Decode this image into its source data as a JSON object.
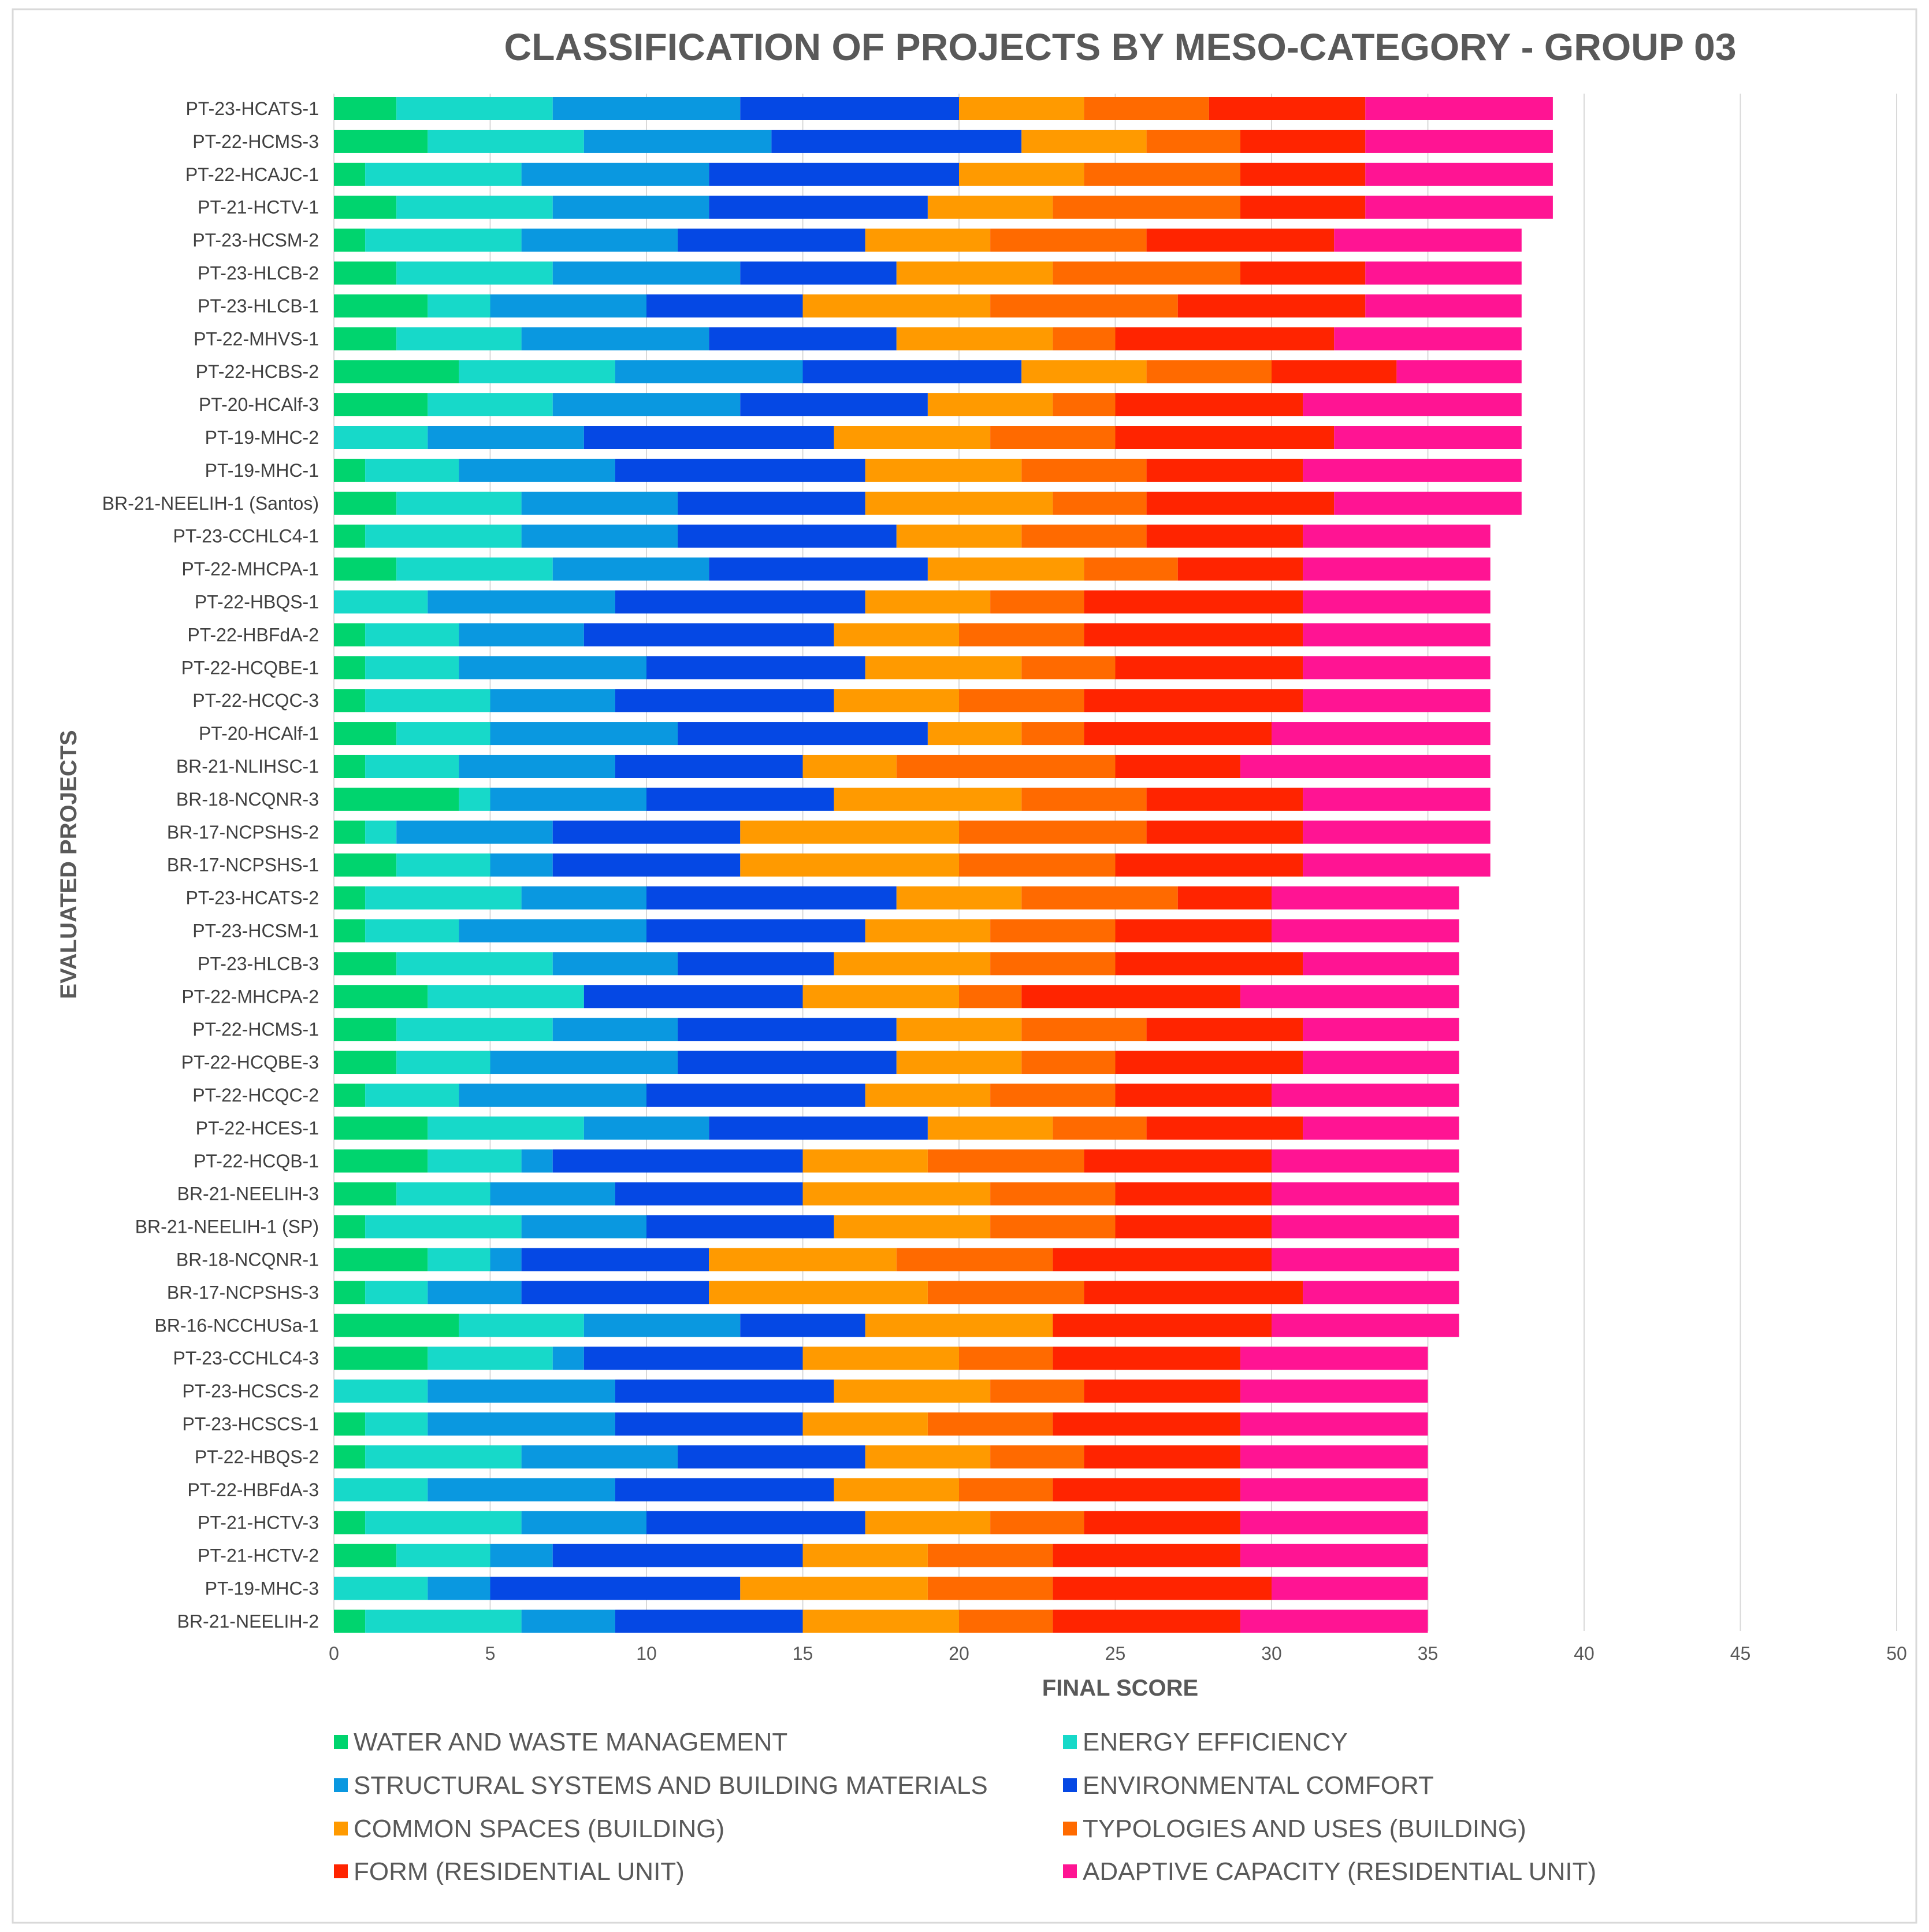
{
  "chart_data": {
    "type": "bar",
    "orientation": "horizontal",
    "stacked": true,
    "title": "CLASSIFICATION OF PROJECTS BY MESO-CATEGORY - GROUP 03",
    "xlabel": "FINAL SCORE",
    "ylabel": "EVALUATED PROJECTS",
    "xlim": [
      0,
      50
    ],
    "xticks": [
      0,
      5,
      10,
      15,
      20,
      25,
      30,
      35,
      40,
      45,
      50
    ],
    "grid": true,
    "legend_position": "bottom",
    "categories": [
      "PT-23-HCATS-1",
      "PT-22-HCMS-3",
      "PT-22-HCAJC-1",
      "PT-21-HCTV-1",
      "PT-23-HCSM-2",
      "PT-23-HLCB-2",
      "PT-23-HLCB-1",
      "PT-22-MHVS-1",
      "PT-22-HCBS-2",
      "PT-20-HCAlf-3",
      "PT-19-MHC-2",
      "PT-19-MHC-1",
      "BR-21-NEELIH-1 (Santos)",
      "PT-23-CCHLC4-1",
      "PT-22-MHCPA-1",
      "PT-22-HBQS-1",
      "PT-22-HBFdA-2",
      "PT-22-HCQBE-1",
      "PT-22-HCQC-3",
      "PT-20-HCAlf-1",
      "BR-21-NLIHSC-1",
      "BR-18-NCQNR-3",
      "BR-17-NCPSHS-2",
      "BR-17-NCPSHS-1",
      "PT-23-HCATS-2",
      "PT-23-HCSM-1",
      "PT-23-HLCB-3",
      "PT-22-MHCPA-2",
      "PT-22-HCMS-1",
      "PT-22-HCQBE-3",
      "PT-22-HCQC-2",
      "PT-22-HCES-1",
      "PT-22-HCQB-1",
      "BR-21-NEELIH-3",
      "BR-21-NEELIH-1 (SP)",
      "BR-18-NCQNR-1",
      "BR-17-NCPSHS-3",
      "BR-16-NCCHUSa-1",
      "PT-23-CCHLC4-3",
      "PT-23-HCSCS-2",
      "PT-23-HCSCS-1",
      "PT-22-HBQS-2",
      "PT-22-HBFdA-3",
      "PT-21-HCTV-3",
      "PT-21-HCTV-2",
      "PT-19-MHC-3",
      "BR-21-NEELIH-2"
    ],
    "series": [
      {
        "name": "WATER AND WASTE MANAGEMENT",
        "color": "#00D46E",
        "values": [
          2,
          3,
          1,
          2,
          1,
          2,
          3,
          2,
          4,
          3,
          0,
          1,
          2,
          1,
          2,
          0,
          1,
          1,
          1,
          2,
          1,
          4,
          1,
          2,
          1,
          1,
          2,
          3,
          2,
          2,
          1,
          3,
          3,
          2,
          1,
          3,
          1,
          4,
          3,
          0,
          1,
          1,
          0,
          1,
          2,
          0,
          1
        ]
      },
      {
        "name": "ENERGY EFFICIENCY",
        "color": "#17D9C9",
        "values": [
          5,
          5,
          5,
          5,
          5,
          5,
          2,
          4,
          5,
          4,
          3,
          3,
          4,
          5,
          5,
          3,
          3,
          3,
          4,
          3,
          3,
          1,
          1,
          3,
          5,
          3,
          5,
          5,
          5,
          3,
          3,
          5,
          3,
          3,
          5,
          2,
          2,
          4,
          4,
          3,
          2,
          5,
          3,
          5,
          3,
          3,
          5
        ]
      },
      {
        "name": "STRUCTURAL SYSTEMS AND BUILDING MATERIALS",
        "color": "#0A98E0",
        "values": [
          6,
          6,
          6,
          5,
          5,
          6,
          5,
          6,
          6,
          6,
          5,
          5,
          5,
          5,
          5,
          6,
          4,
          6,
          4,
          6,
          5,
          5,
          5,
          2,
          4,
          6,
          4,
          0,
          4,
          6,
          6,
          4,
          1,
          4,
          4,
          1,
          3,
          5,
          1,
          6,
          6,
          5,
          6,
          4,
          2,
          2,
          3
        ]
      },
      {
        "name": "ENVIRONMENTAL COMFORT",
        "color": "#0548E4",
        "values": [
          7,
          8,
          8,
          7,
          6,
          5,
          5,
          6,
          7,
          6,
          8,
          8,
          6,
          7,
          7,
          8,
          8,
          7,
          7,
          8,
          6,
          6,
          6,
          6,
          8,
          7,
          5,
          7,
          7,
          7,
          7,
          7,
          8,
          6,
          6,
          6,
          6,
          4,
          7,
          7,
          6,
          6,
          7,
          7,
          8,
          8,
          6
        ]
      },
      {
        "name": "COMMON SPACES (BUILDING)",
        "color": "#FF9A00",
        "values": [
          4,
          4,
          4,
          4,
          4,
          5,
          6,
          5,
          4,
          4,
          5,
          5,
          6,
          4,
          5,
          4,
          4,
          5,
          4,
          3,
          3,
          6,
          7,
          7,
          4,
          4,
          5,
          5,
          4,
          4,
          4,
          4,
          4,
          6,
          5,
          6,
          7,
          6,
          5,
          5,
          4,
          4,
          4,
          4,
          4,
          6,
          5
        ]
      },
      {
        "name": "TYPOLOGIES AND USES (BUILDING)",
        "color": "#FF6A00",
        "values": [
          4,
          3,
          5,
          6,
          5,
          6,
          6,
          2,
          4,
          2,
          4,
          4,
          3,
          4,
          3,
          3,
          4,
          3,
          4,
          2,
          7,
          4,
          6,
          5,
          5,
          4,
          4,
          2,
          4,
          3,
          4,
          3,
          5,
          4,
          4,
          5,
          5,
          0,
          3,
          3,
          4,
          3,
          3,
          3,
          4,
          4,
          3
        ]
      },
      {
        "name": "FORM (RESIDENTIAL UNIT)",
        "color": "#FF2400",
        "values": [
          5,
          4,
          4,
          4,
          6,
          4,
          6,
          7,
          4,
          6,
          7,
          5,
          6,
          5,
          4,
          7,
          7,
          6,
          7,
          6,
          4,
          5,
          5,
          6,
          3,
          5,
          6,
          7,
          5,
          6,
          5,
          5,
          6,
          5,
          5,
          7,
          7,
          7,
          6,
          5,
          6,
          5,
          6,
          5,
          6,
          7,
          6
        ]
      },
      {
        "name": "ADAPTIVE CAPACITY (RESIDENTIAL UNIT)",
        "color": "#FF1493",
        "values": [
          6,
          6,
          6,
          6,
          6,
          5,
          5,
          6,
          4,
          7,
          6,
          7,
          6,
          6,
          6,
          6,
          6,
          6,
          6,
          7,
          8,
          6,
          6,
          6,
          6,
          6,
          5,
          7,
          5,
          5,
          6,
          5,
          6,
          6,
          6,
          6,
          5,
          6,
          6,
          6,
          6,
          6,
          6,
          6,
          6,
          5,
          6
        ]
      }
    ]
  }
}
